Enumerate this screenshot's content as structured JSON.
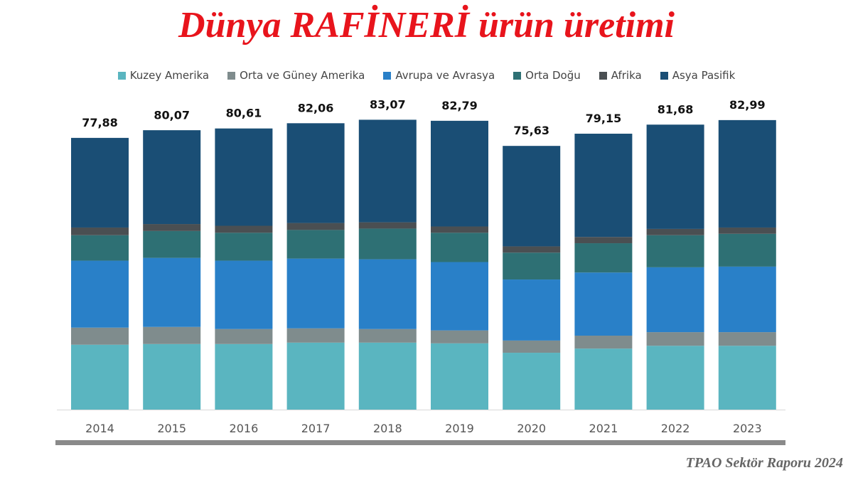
{
  "title": "Dünya RAFİNERİ ürün üretimi",
  "source": "TPAO Sektör Raporu 2024",
  "chart_data": {
    "type": "bar",
    "stacked": true,
    "title": "Dünya RAFİNERİ ürün üretimi",
    "xlabel": "",
    "ylabel": "",
    "ylim": [
      0,
      90
    ],
    "grid": false,
    "legend_position": "top",
    "categories": [
      "2014",
      "2015",
      "2016",
      "2017",
      "2018",
      "2019",
      "2020",
      "2021",
      "2022",
      "2023"
    ],
    "totals": [
      "77,88",
      "80,07",
      "80,61",
      "82,06",
      "83,07",
      "82,79",
      "75,63",
      "79,15",
      "81,68",
      "82,99"
    ],
    "series": [
      {
        "name": "Kuzey Amerika",
        "color": "#5ab5c0",
        "values": [
          18.6,
          18.8,
          18.8,
          19.2,
          19.2,
          19.0,
          16.3,
          17.5,
          18.3,
          18.3
        ]
      },
      {
        "name": "Orta ve Güney Amerika",
        "color": "#7f8c8d",
        "values": [
          4.9,
          4.9,
          4.3,
          4.1,
          3.9,
          3.7,
          3.5,
          3.7,
          3.9,
          3.9
        ]
      },
      {
        "name": "Avrupa ve Avrasya",
        "color": "#2980c8",
        "values": [
          19.2,
          19.8,
          19.6,
          20.0,
          20.0,
          19.6,
          17.5,
          18.1,
          18.6,
          18.8
        ]
      },
      {
        "name": "Orta Doğu",
        "color": "#2e7074",
        "values": [
          7.3,
          7.7,
          8.0,
          8.2,
          8.8,
          8.4,
          7.7,
          8.4,
          9.2,
          9.4
        ]
      },
      {
        "name": "Afrika",
        "color": "#4a4f52",
        "values": [
          2.2,
          2.0,
          2.0,
          2.0,
          1.8,
          1.8,
          1.8,
          1.8,
          1.8,
          1.8
        ]
      },
      {
        "name": "Asya Pasifik",
        "color": "#1a4e75",
        "values": [
          25.7,
          26.9,
          27.9,
          28.6,
          29.4,
          30.3,
          28.8,
          29.6,
          29.9,
          30.8
        ]
      }
    ]
  }
}
